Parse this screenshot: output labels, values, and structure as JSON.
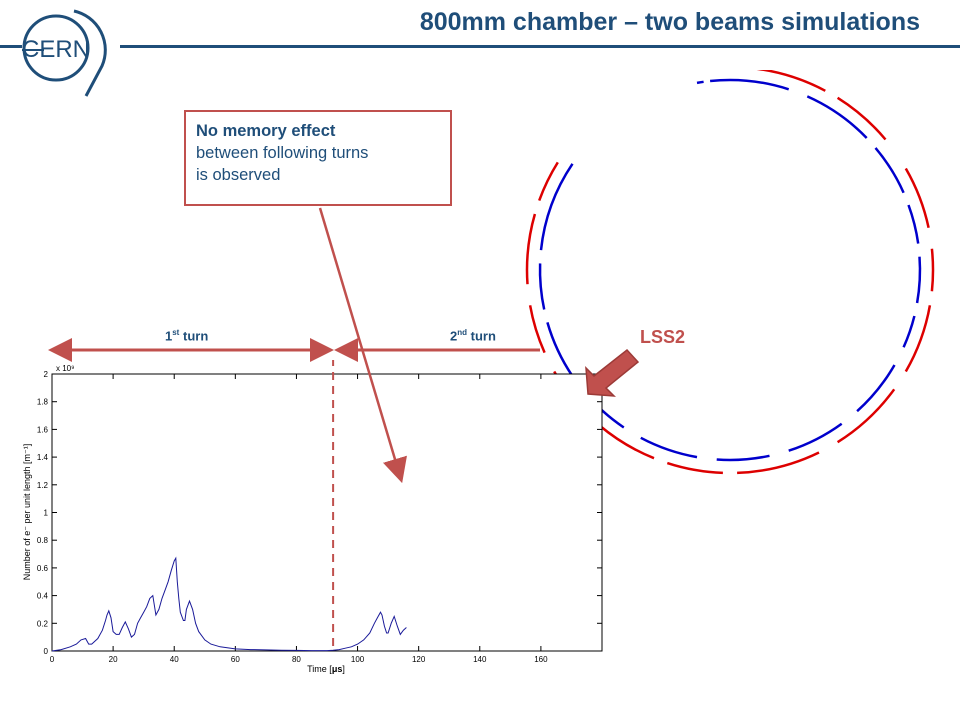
{
  "header": {
    "title": "800mm chamber – two beams simulations",
    "logo_text": "CERN"
  },
  "callout": {
    "bold_text": "No memory effect",
    "rest_line1": "between following turns",
    "rest_line2": "is observed"
  },
  "turns": {
    "first": {
      "num": "1",
      "sup": "st",
      "word": "turn"
    },
    "second": {
      "num": "2",
      "sup": "nd",
      "word": "turn"
    }
  },
  "ring": {
    "label": "LSS2"
  },
  "colors": {
    "accent_red": "#c0504d",
    "title_blue": "#1f4e79",
    "beam_blue": "#0000cc",
    "beam_red": "#dd0000"
  },
  "chart_data": {
    "type": "line",
    "xlabel_prefix": "Time [",
    "xlabel_unit": "μs",
    "xlabel_suffix": "]",
    "ylabel": "Number of e⁻ per unit length [m⁻¹]",
    "y_exponent": "x 10⁹",
    "xlim": [
      0,
      180
    ],
    "ylim": [
      0,
      2
    ],
    "xticks": [
      0,
      20,
      40,
      60,
      80,
      100,
      120,
      140,
      160
    ],
    "yticks": [
      0,
      0.2,
      0.4,
      0.6,
      0.8,
      1,
      1.2,
      1.4,
      1.6,
      1.8,
      2
    ],
    "turn_boundary_x": 92,
    "series": [
      {
        "x": [
          0,
          3,
          6,
          8,
          9.5,
          11,
          12,
          13,
          15,
          16.5,
          17.5,
          18,
          18.6,
          19.3,
          20,
          21,
          22,
          23,
          24,
          25,
          26,
          27,
          28,
          29,
          30,
          31,
          32,
          33,
          34,
          35,
          36,
          37,
          38,
          39,
          40,
          40.5,
          41,
          41.5,
          42,
          43,
          43.5,
          44,
          45,
          46,
          47,
          48,
          50,
          52,
          55,
          60,
          65,
          70,
          75,
          80,
          85,
          90,
          92,
          94,
          96,
          98,
          100,
          102,
          104,
          105.5,
          106.5,
          107.5,
          108,
          108.8,
          109.5,
          110,
          111,
          112,
          113,
          114,
          115,
          116
        ],
        "y": [
          0,
          0.01,
          0.03,
          0.05,
          0.08,
          0.09,
          0.05,
          0.05,
          0.09,
          0.15,
          0.22,
          0.26,
          0.29,
          0.24,
          0.14,
          0.12,
          0.12,
          0.17,
          0.21,
          0.16,
          0.1,
          0.12,
          0.2,
          0.24,
          0.28,
          0.32,
          0.38,
          0.4,
          0.26,
          0.3,
          0.38,
          0.44,
          0.5,
          0.58,
          0.65,
          0.67,
          0.5,
          0.38,
          0.28,
          0.22,
          0.22,
          0.3,
          0.36,
          0.3,
          0.2,
          0.14,
          0.08,
          0.05,
          0.03,
          0.015,
          0.01,
          0.008,
          0.005,
          0.004,
          0.003,
          0.003,
          0.005,
          0.01,
          0.02,
          0.03,
          0.05,
          0.08,
          0.13,
          0.2,
          0.24,
          0.28,
          0.26,
          0.18,
          0.13,
          0.13,
          0.2,
          0.25,
          0.18,
          0.12,
          0.15,
          0.17
        ]
      }
    ]
  }
}
